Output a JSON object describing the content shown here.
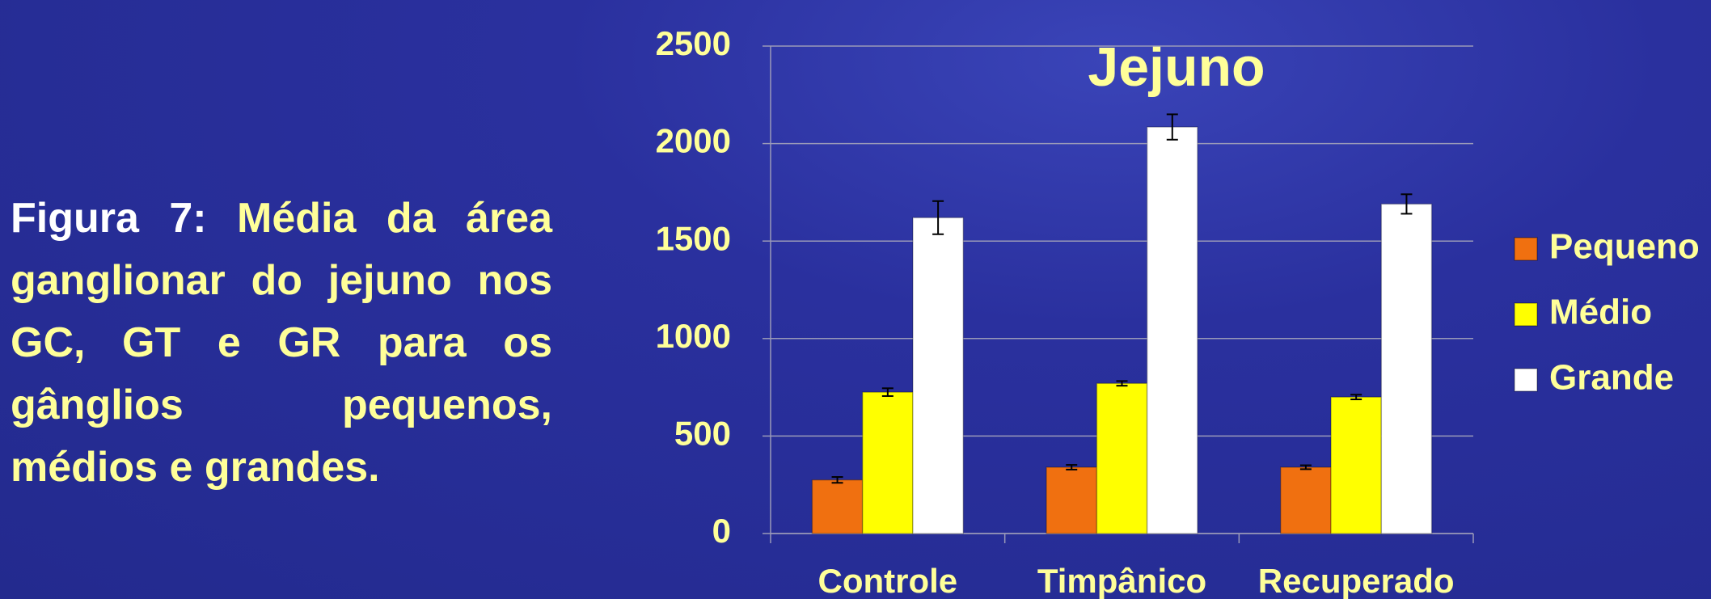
{
  "caption_label": "Figura 7:",
  "caption": "Média da área ganglionar do jejuno nos GC, GT e GR para os gânglios pequenos, médios e grandes.",
  "chart_data": {
    "type": "bar",
    "title": "Jejuno",
    "categories": [
      "Controle",
      "Timpânico",
      "Recuperado"
    ],
    "series": [
      {
        "name": "Pequeno",
        "color": "#f07010",
        "values": [
          275,
          340,
          340
        ],
        "errors": [
          15,
          12,
          10
        ]
      },
      {
        "name": "Médio",
        "color": "#ffff00",
        "values": [
          725,
          770,
          700
        ],
        "errors": [
          20,
          12,
          12
        ]
      },
      {
        "name": "Grande",
        "color": "#ffffff",
        "values": [
          1620,
          2085,
          1690
        ],
        "errors": [
          85,
          65,
          50
        ]
      }
    ],
    "ylim": [
      0,
      2500
    ],
    "yticks": [
      0,
      500,
      1000,
      1500,
      2000,
      2500
    ],
    "grid": true,
    "legend": "right"
  }
}
